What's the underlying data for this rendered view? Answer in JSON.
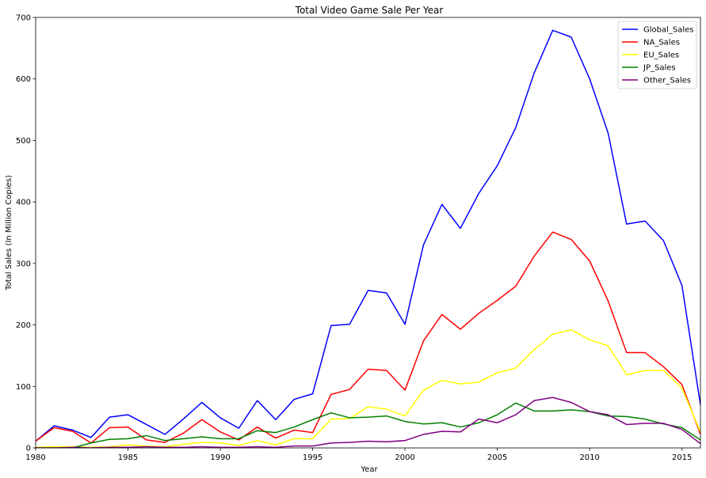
{
  "chart_data": {
    "type": "line",
    "title": "Total Video Game Sale Per Year",
    "xlabel": "Year",
    "ylabel": "Total Sales (In Million Copies)",
    "xlim": [
      1980,
      2016
    ],
    "ylim": [
      0,
      700
    ],
    "x_ticks": [
      1980,
      1985,
      1990,
      1995,
      2000,
      2005,
      2010,
      2015
    ],
    "y_ticks": [
      0,
      100,
      200,
      300,
      400,
      500,
      600,
      700
    ],
    "grid": false,
    "legend_position": "top-right",
    "x": [
      1980,
      1981,
      1982,
      1983,
      1984,
      1985,
      1986,
      1987,
      1988,
      1989,
      1990,
      1991,
      1992,
      1993,
      1994,
      1995,
      1996,
      1997,
      1998,
      1999,
      2000,
      2001,
      2002,
      2003,
      2004,
      2005,
      2006,
      2007,
      2008,
      2009,
      2010,
      2011,
      2012,
      2013,
      2014,
      2015,
      2016
    ],
    "series": [
      {
        "name": "Global_Sales",
        "color": "#0000ff",
        "values": [
          11,
          36,
          29,
          17,
          50,
          54,
          38,
          22,
          47,
          74,
          49,
          32,
          77,
          46,
          79,
          88,
          199,
          201,
          256,
          252,
          201,
          330,
          396,
          357,
          414,
          459,
          521,
          610,
          679,
          668,
          600,
          512,
          364,
          369,
          337,
          264,
          70
        ]
      },
      {
        "name": "NA_Sales",
        "color": "#ff0000",
        "values": [
          11,
          33,
          27,
          8,
          33,
          34,
          13,
          9,
          24,
          46,
          26,
          13,
          34,
          16,
          29,
          25,
          87,
          95,
          128,
          126,
          94,
          174,
          217,
          193,
          219,
          240,
          263,
          312,
          351,
          339,
          304,
          239,
          155,
          155,
          132,
          103,
          22
        ]
      },
      {
        "name": "EU_Sales",
        "color": "#ffff00",
        "values": [
          1,
          2,
          2,
          1,
          2,
          5,
          3,
          2,
          6,
          9,
          8,
          4,
          12,
          5,
          15,
          15,
          47,
          48,
          67,
          63,
          52,
          94,
          110,
          104,
          107,
          122,
          130,
          160,
          185,
          192,
          176,
          166,
          119,
          126,
          126,
          97,
          26
        ]
      },
      {
        "name": "JP_Sales",
        "color": "#008000",
        "values": [
          0,
          0,
          0,
          8,
          14,
          15,
          20,
          12,
          15,
          18,
          15,
          15,
          28,
          25,
          34,
          46,
          57,
          49,
          50,
          52,
          43,
          39,
          41,
          34,
          41,
          54,
          73,
          60,
          60,
          62,
          59,
          52,
          51,
          47,
          39,
          33,
          13
        ]
      },
      {
        "name": "Other_Sales",
        "color": "#800080",
        "values": [
          0,
          0,
          1,
          0,
          1,
          1,
          2,
          1,
          1,
          2,
          1,
          1,
          2,
          1,
          3,
          3,
          8,
          9,
          11,
          10,
          12,
          22,
          27,
          26,
          47,
          41,
          54,
          77,
          82,
          74,
          59,
          54,
          38,
          40,
          40,
          30,
          7
        ]
      }
    ]
  }
}
